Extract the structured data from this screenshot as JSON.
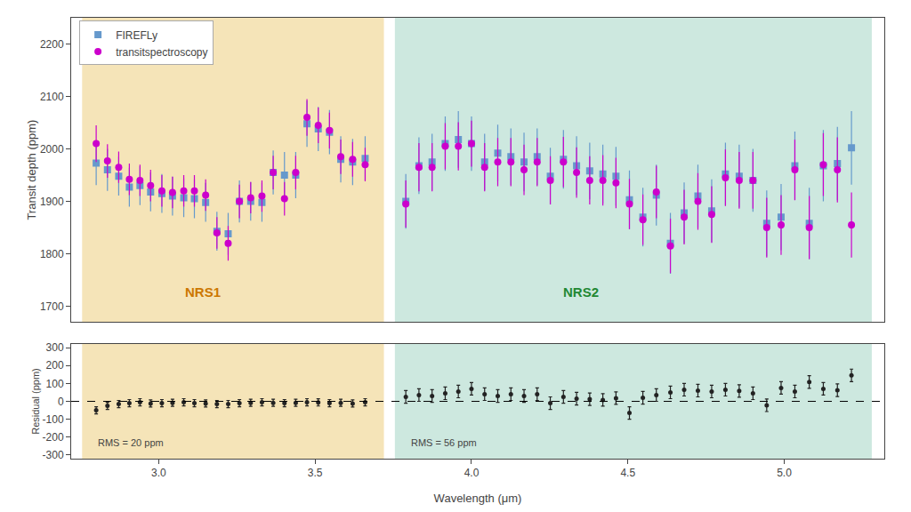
{
  "chart_data": [
    {
      "type": "scatter",
      "ylabel": "Transit depth (ppm)",
      "xlim": [
        2.72,
        5.32
      ],
      "ylim": [
        1670,
        2250
      ],
      "yticks": [
        1700,
        1800,
        1900,
        2000,
        2100,
        2200
      ],
      "tick_labels": "y",
      "grid": false,
      "legend": "upper left",
      "regions": [
        {
          "range": [
            2.755,
            3.72
          ],
          "color": "#f5e4b8"
        },
        {
          "range": [
            3.755,
            5.28
          ],
          "color": "#cde8df"
        }
      ],
      "annotations": [
        {
          "text": "NRS1",
          "x": 3.14,
          "y": 1710,
          "color": "#cc7700"
        },
        {
          "text": "NRS2",
          "x": 4.35,
          "y": 1710,
          "color": "#228833"
        }
      ],
      "x": [
        2.8,
        2.836,
        2.872,
        2.906,
        2.94,
        2.974,
        3.01,
        3.044,
        3.08,
        3.114,
        3.15,
        3.186,
        3.222,
        3.258,
        3.294,
        3.33,
        3.366,
        3.402,
        3.438,
        3.474,
        3.51,
        3.546,
        3.582,
        3.62,
        3.66,
        3.79,
        3.832,
        3.874,
        3.916,
        3.958,
        4.0,
        4.042,
        4.084,
        4.126,
        4.168,
        4.21,
        4.252,
        4.294,
        4.336,
        4.378,
        4.42,
        4.462,
        4.505,
        4.548,
        4.591,
        4.636,
        4.68,
        4.724,
        4.768,
        4.812,
        4.856,
        4.9,
        4.944,
        4.99,
        5.034,
        5.08,
        5.125,
        5.17,
        5.215
      ],
      "series": [
        {
          "name": "FIREFLy",
          "color": "#6699cc",
          "marker": "square",
          "values": [
            1973,
            1960,
            1948,
            1927,
            1930,
            1918,
            1915,
            1910,
            1907,
            1905,
            1898,
            1843,
            1838,
            1900,
            1900,
            1898,
            1955,
            1950,
            1950,
            2048,
            2038,
            2032,
            1980,
            1975,
            1982,
            1900,
            1968,
            1975,
            2010,
            2018,
            2010,
            1975,
            1992,
            1985,
            1975,
            1985,
            1948,
            1980,
            1968,
            1958,
            1952,
            1948,
            1903,
            1870,
            1912,
            1820,
            1878,
            1910,
            1882,
            1952,
            1948,
            1940,
            1858,
            1870,
            1968,
            1858,
            1968,
            1972,
            2002
          ],
          "error_minus": [
            42,
            40,
            37,
            37,
            37,
            37,
            37,
            37,
            37,
            37,
            37,
            37,
            40,
            40,
            37,
            37,
            42,
            44,
            44,
            44,
            42,
            42,
            44,
            44,
            42,
            52,
            54,
            54,
            52,
            54,
            52,
            54,
            54,
            54,
            56,
            54,
            54,
            56,
            56,
            54,
            56,
            56,
            56,
            56,
            58,
            58,
            58,
            60,
            60,
            60,
            60,
            60,
            63,
            63,
            65,
            68,
            68,
            70,
            70
          ],
          "error_plus": [
            42,
            40,
            37,
            37,
            37,
            37,
            37,
            37,
            37,
            37,
            37,
            37,
            40,
            40,
            37,
            37,
            42,
            44,
            44,
            44,
            42,
            42,
            44,
            44,
            42,
            52,
            54,
            54,
            52,
            54,
            52,
            54,
            54,
            54,
            56,
            54,
            54,
            56,
            56,
            54,
            56,
            56,
            56,
            56,
            58,
            58,
            58,
            60,
            60,
            60,
            60,
            60,
            63,
            63,
            65,
            68,
            68,
            70,
            70
          ]
        },
        {
          "name": "transitspectroscopy",
          "color": "#cc00cc",
          "marker": "circle",
          "values": [
            2010,
            1977,
            1965,
            1942,
            1940,
            1930,
            1920,
            1917,
            1920,
            1920,
            1912,
            1840,
            1820,
            1900,
            1907,
            1910,
            1955,
            1905,
            1955,
            2060,
            2045,
            2035,
            1985,
            1980,
            1970,
            1895,
            1965,
            1965,
            2005,
            2005,
            2010,
            1965,
            1975,
            1975,
            1960,
            1975,
            1940,
            1975,
            1955,
            1940,
            1940,
            1935,
            1895,
            1865,
            1918,
            1815,
            1870,
            1900,
            1875,
            1945,
            1940,
            1940,
            1850,
            1855,
            1960,
            1850,
            1970,
            1960,
            1855
          ],
          "error_minus": [
            35,
            32,
            30,
            30,
            30,
            30,
            30,
            30,
            30,
            30,
            30,
            30,
            33,
            32,
            30,
            30,
            32,
            32,
            32,
            35,
            34,
            34,
            33,
            33,
            32,
            45,
            46,
            46,
            44,
            46,
            44,
            46,
            46,
            46,
            48,
            46,
            46,
            48,
            48,
            46,
            48,
            48,
            48,
            48,
            50,
            52,
            52,
            54,
            54,
            54,
            54,
            54,
            57,
            57,
            58,
            60,
            60,
            62,
            62
          ],
          "error_plus": [
            35,
            32,
            30,
            30,
            30,
            30,
            30,
            30,
            30,
            30,
            30,
            30,
            33,
            32,
            30,
            30,
            32,
            32,
            32,
            35,
            34,
            34,
            33,
            33,
            32,
            45,
            46,
            46,
            44,
            46,
            44,
            46,
            46,
            46,
            48,
            46,
            46,
            48,
            48,
            46,
            48,
            48,
            48,
            48,
            50,
            52,
            52,
            54,
            54,
            54,
            54,
            54,
            57,
            57,
            58,
            60,
            60,
            62,
            62
          ]
        }
      ]
    },
    {
      "type": "scatter",
      "xlabel": "Wavelength (μm)",
      "ylabel": "Residual (ppm)",
      "xlim": [
        2.72,
        5.32
      ],
      "ylim": [
        -320,
        320
      ],
      "xticks": [
        {
          "value": 3.0,
          "label": "3.0"
        },
        3.5,
        {
          "value": 4.0,
          "label": "4.0"
        },
        4.5,
        {
          "value": 5.0,
          "label": "5.0"
        }
      ],
      "yticks": [
        -300,
        -200,
        -100,
        0,
        100,
        200,
        300
      ],
      "grid": false,
      "regions": [
        {
          "range": [
            2.755,
            3.72
          ],
          "color": "#f5e4b8"
        },
        {
          "range": [
            3.755,
            5.28
          ],
          "color": "#cde8df"
        }
      ],
      "reference_line": {
        "y": 0,
        "line_style": "dashed",
        "color": "black"
      },
      "annotations": [
        {
          "text": "RMS = 20 ppm",
          "x": 2.8,
          "y": -270,
          "color": "#444444"
        },
        {
          "text": "RMS = 56 ppm",
          "x": 3.8,
          "y": -270,
          "color": "#444444"
        }
      ],
      "x": [
        2.8,
        2.836,
        2.872,
        2.906,
        2.94,
        2.974,
        3.01,
        3.044,
        3.08,
        3.114,
        3.15,
        3.186,
        3.222,
        3.258,
        3.294,
        3.33,
        3.366,
        3.402,
        3.438,
        3.474,
        3.51,
        3.546,
        3.582,
        3.62,
        3.66,
        3.79,
        3.832,
        3.874,
        3.916,
        3.958,
        4.0,
        4.042,
        4.084,
        4.126,
        4.168,
        4.21,
        4.252,
        4.294,
        4.336,
        4.378,
        4.42,
        4.462,
        4.505,
        4.548,
        4.591,
        4.636,
        4.68,
        4.724,
        4.768,
        4.812,
        4.856,
        4.9,
        4.944,
        4.99,
        5.034,
        5.08,
        5.125,
        5.17,
        5.215
      ],
      "series": [
        {
          "color": "#222222",
          "marker": "circle",
          "values": [
            -50,
            -25,
            -15,
            -10,
            -5,
            -12,
            -10,
            -8,
            -5,
            -10,
            -12,
            -15,
            -15,
            -10,
            -8,
            -5,
            -8,
            -10,
            -8,
            -5,
            -6,
            -10,
            -8,
            -12,
            -5,
            25,
            35,
            30,
            45,
            55,
            70,
            40,
            30,
            40,
            30,
            40,
            -10,
            25,
            15,
            12,
            8,
            18,
            -65,
            20,
            35,
            50,
            65,
            60,
            55,
            65,
            58,
            45,
            -22,
            75,
            55,
            108,
            70,
            62,
            145
          ],
          "error_minus": [
            20,
            20,
            20,
            20,
            20,
            20,
            20,
            20,
            20,
            20,
            20,
            20,
            20,
            20,
            20,
            20,
            20,
            20,
            20,
            20,
            20,
            20,
            20,
            20,
            20,
            35,
            35,
            35,
            35,
            35,
            35,
            35,
            35,
            35,
            35,
            35,
            35,
            35,
            35,
            35,
            35,
            35,
            35,
            35,
            35,
            35,
            35,
            35,
            35,
            35,
            35,
            35,
            35,
            35,
            35,
            35,
            35,
            35,
            35
          ],
          "error_plus": [
            20,
            20,
            20,
            20,
            20,
            20,
            20,
            20,
            20,
            20,
            20,
            20,
            20,
            20,
            20,
            20,
            20,
            20,
            20,
            20,
            20,
            20,
            20,
            20,
            20,
            35,
            35,
            35,
            35,
            35,
            35,
            35,
            35,
            35,
            35,
            35,
            35,
            35,
            35,
            35,
            35,
            35,
            35,
            35,
            35,
            35,
            35,
            35,
            35,
            35,
            35,
            35,
            35,
            35,
            35,
            35,
            35,
            35,
            35
          ]
        }
      ]
    }
  ]
}
